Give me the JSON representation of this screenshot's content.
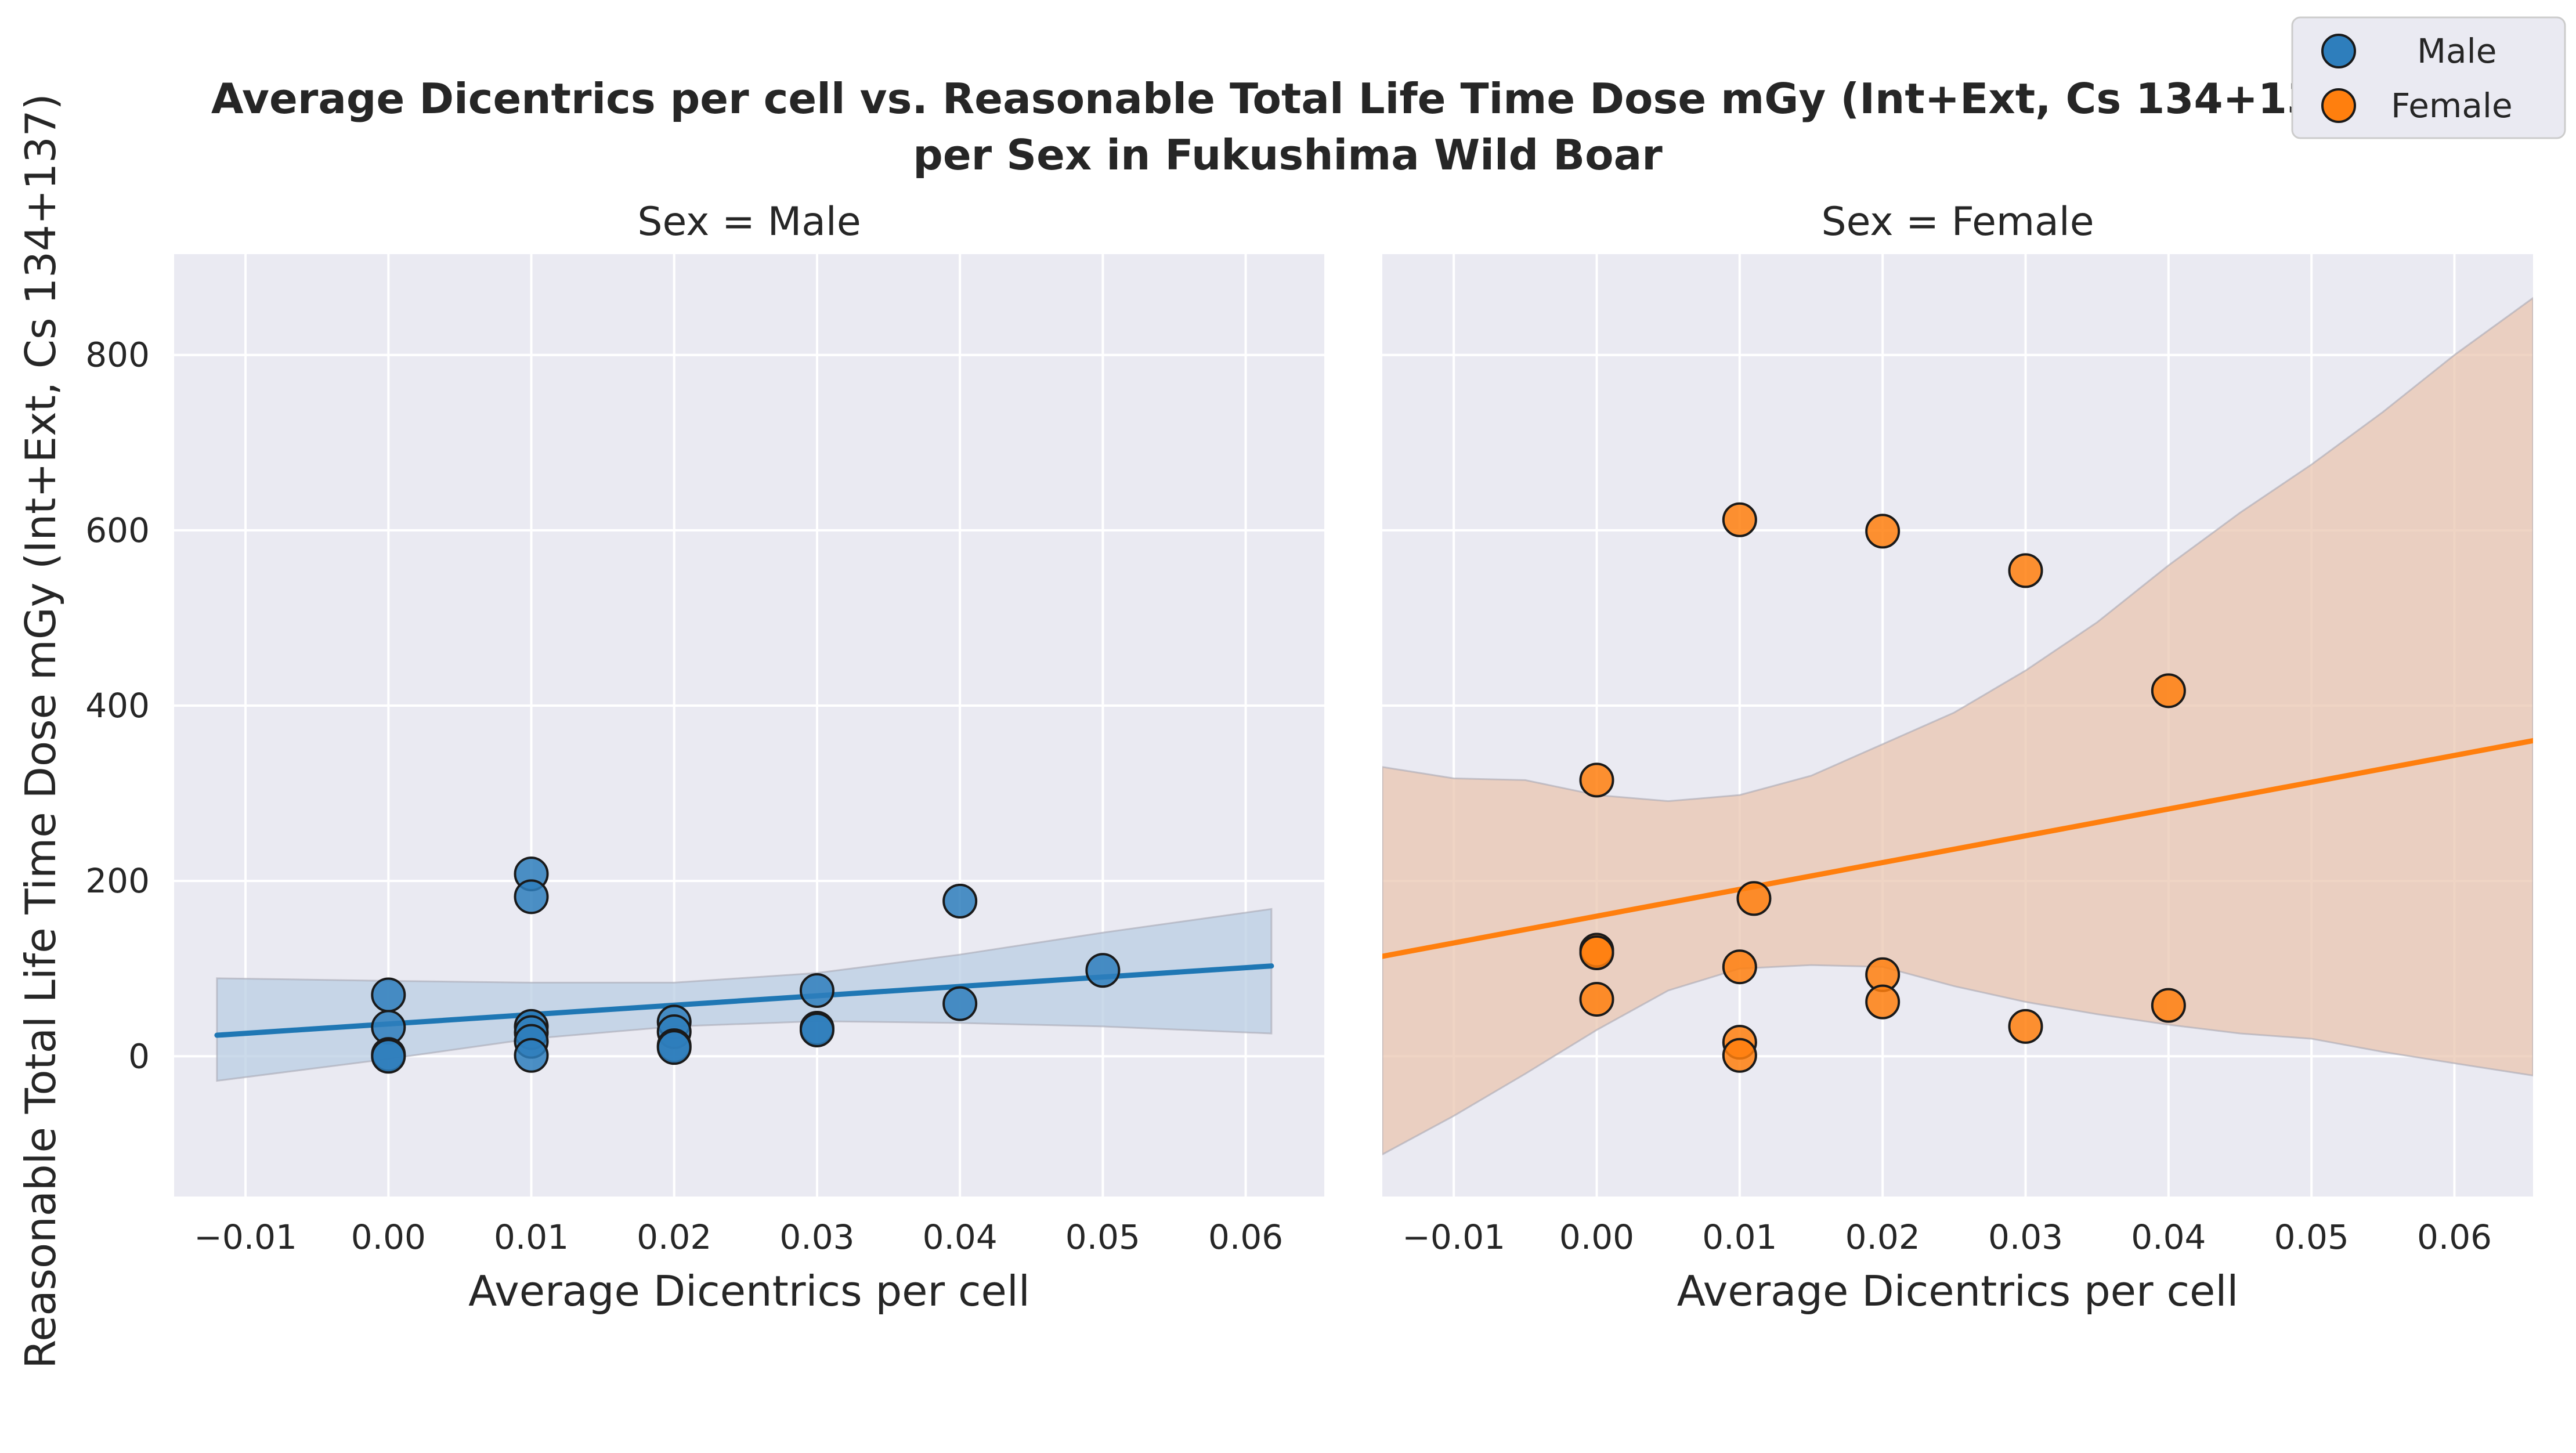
{
  "figure": {
    "title_line1": "Average Dicentrics per cell vs. Reasonable Total Life Time Dose mGy (Int+Ext, Cs 134+137)",
    "title_line2": "per Sex in Fukushima Wild Boar",
    "ylabel": "Reasonable Total Life Time Dose mGy (Int+Ext, Cs 134+137)"
  },
  "legend": {
    "placement": "top-right",
    "items": [
      {
        "label": "Male",
        "color": "#2e7ebc"
      },
      {
        "label": "Female",
        "color": "#ff7f0e"
      }
    ]
  },
  "colors": {
    "background": "#eaeaf2",
    "grid": "#ffffff",
    "male": "#2e7ebc",
    "male_line": "#1f77b4",
    "female": "#ff7f0e",
    "female_band": "#e9c6b0",
    "male_band": "#b9cde3",
    "marker_edge": "#1a1a1a"
  },
  "chart_data": [
    {
      "type": "scatter",
      "title": "Sex = Male",
      "xlabel": "Average Dicentrics per cell",
      "ylabel": "Reasonable Total Life Time Dose mGy (Int+Ext, Cs 134+137)",
      "xlim": [
        -0.015,
        0.0655
      ],
      "ylim": [
        -160,
        915
      ],
      "xticks": [
        "−0.01",
        "0.00",
        "0.01",
        "0.02",
        "0.03",
        "0.04",
        "0.05",
        "0.06"
      ],
      "xtick_values": [
        -0.01,
        0,
        0.01,
        0.02,
        0.03,
        0.04,
        0.05,
        0.06
      ],
      "yticks": [
        "0",
        "200",
        "400",
        "600",
        "800"
      ],
      "ytick_values": [
        0,
        200,
        400,
        600,
        800
      ],
      "grid": true,
      "series": [
        {
          "name": "Male",
          "points": [
            [
              0.0,
              70
            ],
            [
              0.0,
              33
            ],
            [
              0.0,
              2
            ],
            [
              0.0,
              0
            ],
            [
              0.01,
              208
            ],
            [
              0.01,
              182
            ],
            [
              0.01,
              34
            ],
            [
              0.01,
              27
            ],
            [
              0.01,
              17
            ],
            [
              0.01,
              1
            ],
            [
              0.02,
              39
            ],
            [
              0.02,
              28
            ],
            [
              0.02,
              12
            ],
            [
              0.02,
              10
            ],
            [
              0.03,
              75
            ],
            [
              0.03,
              32
            ],
            [
              0.03,
              30
            ],
            [
              0.04,
              177
            ],
            [
              0.04,
              60
            ],
            [
              0.05,
              98
            ]
          ],
          "regression": {
            "x": [
              -0.012,
              0.0618
            ],
            "y": [
              24,
              103
            ]
          },
          "ci_upper": [
            [
              -0.012,
              89
            ],
            [
              0.0,
              86
            ],
            [
              0.01,
              84
            ],
            [
              0.02,
              84
            ],
            [
              0.03,
              95
            ],
            [
              0.04,
              116
            ],
            [
              0.05,
              141
            ],
            [
              0.0618,
              168
            ]
          ],
          "ci_lower": [
            [
              -0.012,
              -28
            ],
            [
              0.0,
              -3
            ],
            [
              0.01,
              20
            ],
            [
              0.02,
              34
            ],
            [
              0.03,
              40
            ],
            [
              0.04,
              38
            ],
            [
              0.05,
              34
            ],
            [
              0.0618,
              26
            ]
          ]
        }
      ]
    },
    {
      "type": "scatter",
      "title": "Sex = Female",
      "xlabel": "Average Dicentrics per cell",
      "xlim": [
        -0.015,
        0.0655
      ],
      "ylim": [
        -160,
        915
      ],
      "xticks": [
        "−0.01",
        "0.00",
        "0.01",
        "0.02",
        "0.03",
        "0.04",
        "0.05",
        "0.06"
      ],
      "xtick_values": [
        -0.01,
        0,
        0.01,
        0.02,
        0.03,
        0.04,
        0.05,
        0.06
      ],
      "grid": true,
      "series": [
        {
          "name": "Female",
          "points": [
            [
              0.0,
              315
            ],
            [
              0.0,
              121
            ],
            [
              0.0,
              118
            ],
            [
              0.0,
              65
            ],
            [
              0.01,
              612
            ],
            [
              0.011,
              180
            ],
            [
              0.01,
              102
            ],
            [
              0.01,
              16
            ],
            [
              0.01,
              1
            ],
            [
              0.02,
              599
            ],
            [
              0.02,
              93
            ],
            [
              0.02,
              62
            ],
            [
              0.03,
              554
            ],
            [
              0.03,
              34
            ],
            [
              0.04,
              417
            ],
            [
              0.04,
              58
            ]
          ],
          "regression": {
            "x": [
              -0.015,
              0.0655
            ],
            "y": [
              114,
              360
            ]
          },
          "ci_upper": [
            [
              -0.015,
              330
            ],
            [
              -0.01,
              317
            ],
            [
              -0.005,
              315
            ],
            [
              0.0,
              298
            ],
            [
              0.005,
              291
            ],
            [
              0.01,
              298
            ],
            [
              0.015,
              320
            ],
            [
              0.02,
              356
            ],
            [
              0.025,
              392
            ],
            [
              0.03,
              440
            ],
            [
              0.035,
              495
            ],
            [
              0.04,
              560
            ],
            [
              0.045,
              620
            ],
            [
              0.05,
              675
            ],
            [
              0.055,
              735
            ],
            [
              0.06,
              800
            ],
            [
              0.0655,
              865
            ]
          ],
          "ci_lower": [
            [
              -0.015,
              -112
            ],
            [
              -0.01,
              -68
            ],
            [
              -0.005,
              -20
            ],
            [
              0.0,
              30
            ],
            [
              0.005,
              75
            ],
            [
              0.01,
              100
            ],
            [
              0.015,
              104
            ],
            [
              0.02,
              102
            ],
            [
              0.025,
              80
            ],
            [
              0.03,
              62
            ],
            [
              0.035,
              48
            ],
            [
              0.04,
              36
            ],
            [
              0.045,
              26
            ],
            [
              0.05,
              20
            ],
            [
              0.055,
              5
            ],
            [
              0.06,
              -8
            ],
            [
              0.0655,
              -22
            ]
          ]
        }
      ]
    }
  ]
}
